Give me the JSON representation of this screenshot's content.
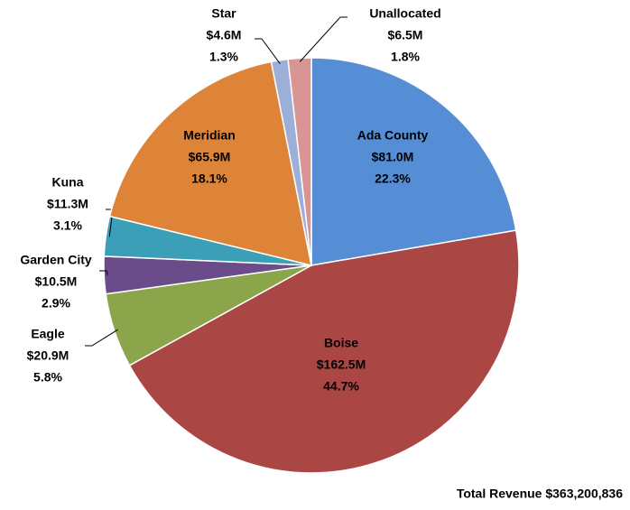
{
  "chart_data": {
    "type": "pie",
    "categories": [
      "Ada County",
      "Boise",
      "Eagle",
      "Garden City",
      "Kuna",
      "Meridian",
      "Star",
      "Unallocated"
    ],
    "values": [
      22.3,
      44.7,
      5.8,
      2.9,
      3.1,
      18.1,
      1.3,
      1.8
    ],
    "value_labels": [
      "22.3%",
      "44.7%",
      "5.8%",
      "2.9%",
      "3.1%",
      "18.1%",
      "1.3%",
      "1.8%"
    ],
    "amount_labels": [
      "$81.0M",
      "$162.5M",
      "$20.9M",
      "$10.5M",
      "$11.3M",
      "$65.9M",
      "$4.6M",
      "$6.5M"
    ],
    "colors": [
      "#558ed5",
      "#aa4644",
      "#8aa54a",
      "#6b4c8a",
      "#3ba0b7",
      "#dd8439",
      "#9bafd8",
      "#d89593"
    ],
    "footnote": "Total Revenue $363,200,836"
  }
}
